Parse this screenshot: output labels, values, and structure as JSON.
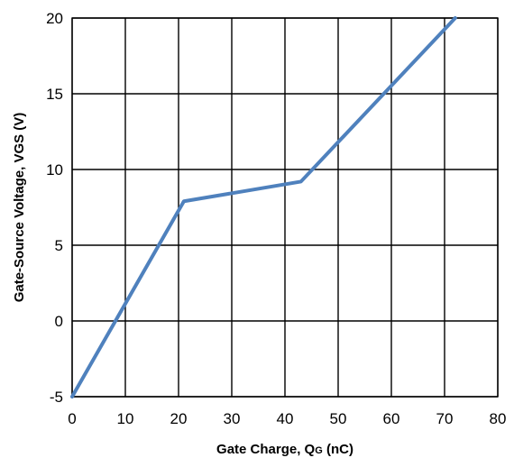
{
  "chart_data": {
    "type": "line",
    "title": "",
    "xlabel": "Gate Charge, Q",
    "xlabel_subscript": "G",
    "xlabel_suffix": " (nC)",
    "ylabel": "Gate-Source Voltage, VGS (V)",
    "xlim": [
      0,
      80
    ],
    "ylim": [
      -5,
      20
    ],
    "xticks": [
      0,
      10,
      20,
      30,
      40,
      50,
      60,
      70,
      80
    ],
    "yticks": [
      -5,
      0,
      5,
      10,
      15,
      20
    ],
    "grid": true,
    "legend": "none",
    "series": [
      {
        "color": "#4f81bd",
        "x": [
          0,
          21,
          43,
          72
        ],
        "y": [
          -5,
          7.9,
          9.2,
          20
        ]
      }
    ]
  }
}
